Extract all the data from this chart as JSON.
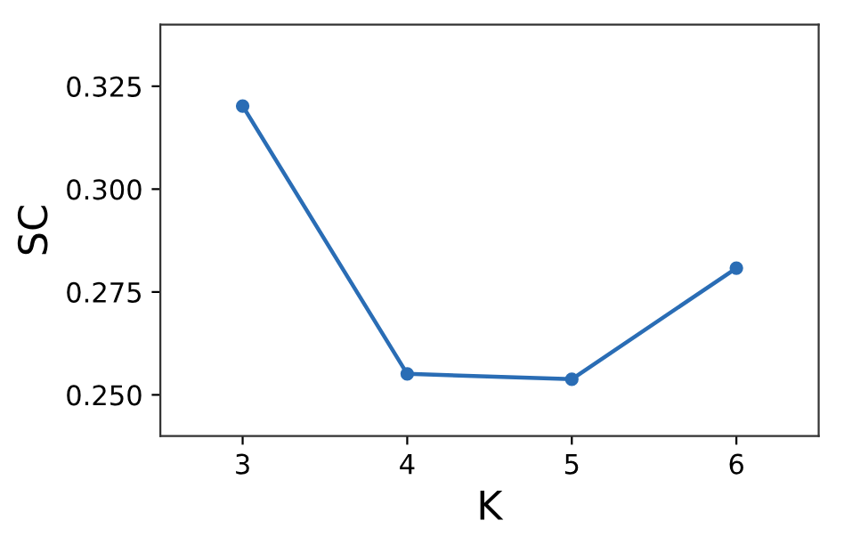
{
  "chart_data": {
    "type": "line",
    "xlabel": "K",
    "ylabel": "SC",
    "x": [
      3,
      4,
      5,
      6
    ],
    "series": [
      {
        "color": "#2a6db5",
        "values": [
          0.3202,
          0.2551,
          0.2538,
          0.2808
        ]
      }
    ],
    "xlim": [
      2.5,
      6.5
    ],
    "xticks": [
      3,
      4,
      5,
      6
    ],
    "ylim": [
      0.24,
      0.34
    ],
    "yticks": [
      {
        "value": 0.25,
        "label": "0.250"
      },
      {
        "value": 0.275,
        "label": "0.275"
      },
      {
        "value": 0.3,
        "label": "0.300"
      },
      {
        "value": 0.325,
        "label": "0.325"
      }
    ],
    "marker": "circle",
    "line_style": "solid",
    "grid": false,
    "legend": false
  }
}
